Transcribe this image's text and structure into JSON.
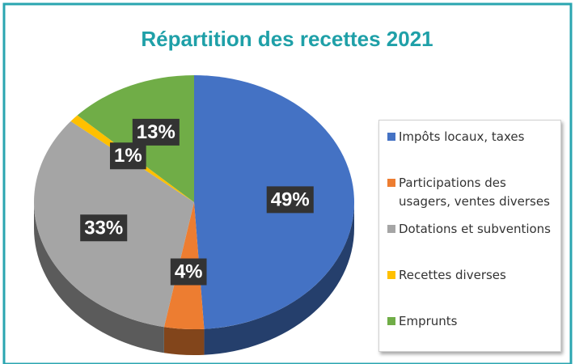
{
  "chart_data": {
    "type": "pie",
    "title": "Répartition des recettes 2021",
    "categories": [
      "Impôts locaux, taxes",
      "Participations des usagers, ventes diverses",
      "Dotations et subventions",
      "Recettes diverses",
      "Emprunts"
    ],
    "values": [
      49,
      4,
      33,
      1,
      13
    ],
    "value_labels": [
      "49%",
      "4%",
      "33%",
      "1%",
      "13%"
    ],
    "colors": [
      "#4472c4",
      "#ed7d31",
      "#a5a5a5",
      "#ffc000",
      "#70ad47"
    ],
    "legend": "right"
  }
}
